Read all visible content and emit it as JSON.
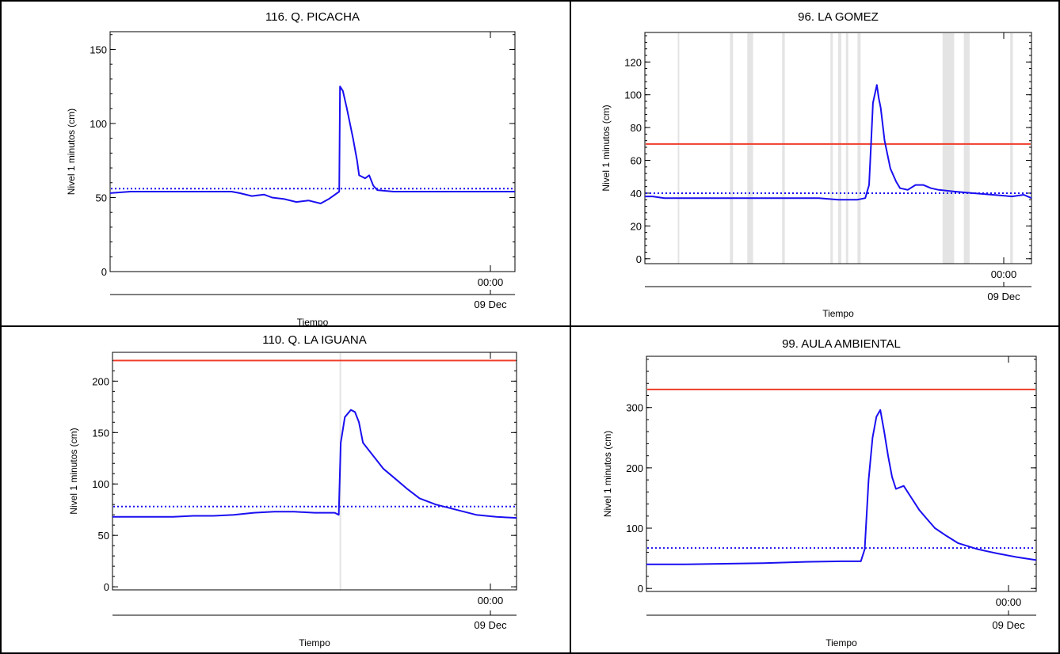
{
  "chart_data": [
    {
      "type": "line",
      "title": "116. Q. PICACHA",
      "xlabel": "Tiempo",
      "ylabel": "Nivel 1 minutos (cm)",
      "ylim": [
        0,
        162
      ],
      "yticks": [
        0,
        50,
        100,
        150
      ],
      "xtick_label": "00:00",
      "date_label": "09 Dec",
      "threshold": null,
      "baseline": 56,
      "gaps": [],
      "series": [
        {
          "color": "#1a0ff0",
          "x": [
            0.0,
            0.05,
            0.1,
            0.15,
            0.2,
            0.25,
            0.3,
            0.32,
            0.35,
            0.38,
            0.4,
            0.43,
            0.46,
            0.49,
            0.52,
            0.54,
            0.566,
            0.568,
            0.575,
            0.585,
            0.6,
            0.61,
            0.615,
            0.63,
            0.64,
            0.65,
            0.66,
            0.7,
            0.75,
            0.8,
            0.85,
            0.9,
            0.95,
            1.0
          ],
          "y": [
            53,
            54,
            54,
            54,
            54,
            54,
            54,
            53,
            51,
            52,
            50,
            49,
            47,
            48,
            46,
            49,
            54,
            125,
            122,
            110,
            90,
            75,
            65,
            63,
            65,
            58,
            55,
            54,
            54,
            54,
            54,
            54,
            54,
            54
          ]
        }
      ]
    },
    {
      "type": "line",
      "title": "96. LA GOMEZ",
      "xlabel": "Tiempo",
      "ylabel": "Nivel 1 minutos (cm)",
      "ylim": [
        -3,
        138
      ],
      "yticks": [
        0,
        20,
        40,
        60,
        80,
        100,
        120
      ],
      "xtick_label": "00:00",
      "date_label": "09 Dec",
      "threshold": 70,
      "baseline": 40,
      "gaps": [
        [
          0.085,
          0.089
        ],
        [
          0.22,
          0.228
        ],
        [
          0.265,
          0.28
        ],
        [
          0.355,
          0.362
        ],
        [
          0.48,
          0.486
        ],
        [
          0.5,
          0.508
        ],
        [
          0.52,
          0.526
        ],
        [
          0.55,
          0.558
        ],
        [
          0.77,
          0.8
        ],
        [
          0.825,
          0.84
        ],
        [
          0.945,
          0.952
        ]
      ],
      "series": [
        {
          "color": "#1a0ff0",
          "x": [
            0.0,
            0.02,
            0.05,
            0.1,
            0.2,
            0.3,
            0.4,
            0.45,
            0.5,
            0.55,
            0.57,
            0.58,
            0.585,
            0.59,
            0.6,
            0.605,
            0.61,
            0.62,
            0.635,
            0.65,
            0.66,
            0.68,
            0.7,
            0.72,
            0.74,
            0.76,
            0.8,
            0.85,
            0.9,
            0.95,
            0.98,
            1.0
          ],
          "y": [
            38,
            38,
            37,
            37,
            37,
            37,
            37,
            37,
            36,
            36,
            37,
            45,
            70,
            95,
            106,
            98,
            92,
            72,
            55,
            47,
            43,
            42,
            45,
            45,
            43,
            42,
            41,
            40,
            39,
            38,
            39,
            37
          ]
        }
      ]
    },
    {
      "type": "line",
      "title": "110. Q. LA IGUANA",
      "xlabel": "Tiempo",
      "ylabel": "Nivel 1 minutos (cm)",
      "ylim": [
        -3,
        228
      ],
      "yticks": [
        0,
        50,
        100,
        150,
        200
      ],
      "xtick_label": "00:00",
      "date_label": "09 Dec",
      "threshold": 220,
      "baseline": 78,
      "gaps": [
        [
          0.562,
          0.566
        ]
      ],
      "series": [
        {
          "color": "#1a0ff0",
          "x": [
            0.0,
            0.05,
            0.1,
            0.15,
            0.2,
            0.25,
            0.3,
            0.35,
            0.4,
            0.45,
            0.5,
            0.55,
            0.56,
            0.565,
            0.575,
            0.59,
            0.6,
            0.61,
            0.62,
            0.63,
            0.65,
            0.67,
            0.7,
            0.73,
            0.76,
            0.8,
            0.85,
            0.9,
            0.95,
            1.0
          ],
          "y": [
            68,
            68,
            68,
            68,
            69,
            69,
            70,
            72,
            73,
            73,
            72,
            72,
            70,
            140,
            165,
            172,
            170,
            160,
            140,
            135,
            125,
            115,
            105,
            95,
            86,
            80,
            75,
            70,
            68,
            67
          ]
        }
      ]
    },
    {
      "type": "line",
      "title": "99. AULA AMBIENTAL",
      "xlabel": "Tiempo",
      "ylabel": "Nivel 1 minutos (cm)",
      "ylim": [
        -5,
        385
      ],
      "yticks": [
        0,
        100,
        200,
        300
      ],
      "xtick_label": "00:00",
      "date_label": "09 Dec",
      "threshold": 330,
      "baseline": 67,
      "gaps": [],
      "series": [
        {
          "color": "#1a0ff0",
          "x": [
            0.0,
            0.1,
            0.2,
            0.3,
            0.4,
            0.5,
            0.55,
            0.56,
            0.57,
            0.58,
            0.59,
            0.6,
            0.61,
            0.62,
            0.63,
            0.64,
            0.66,
            0.68,
            0.7,
            0.72,
            0.74,
            0.77,
            0.8,
            0.85,
            0.9,
            0.95,
            1.0
          ],
          "y": [
            40,
            40,
            41,
            42,
            44,
            45,
            45,
            65,
            180,
            250,
            285,
            296,
            260,
            220,
            185,
            165,
            170,
            150,
            130,
            115,
            100,
            87,
            75,
            65,
            58,
            52,
            47
          ]
        }
      ]
    }
  ]
}
